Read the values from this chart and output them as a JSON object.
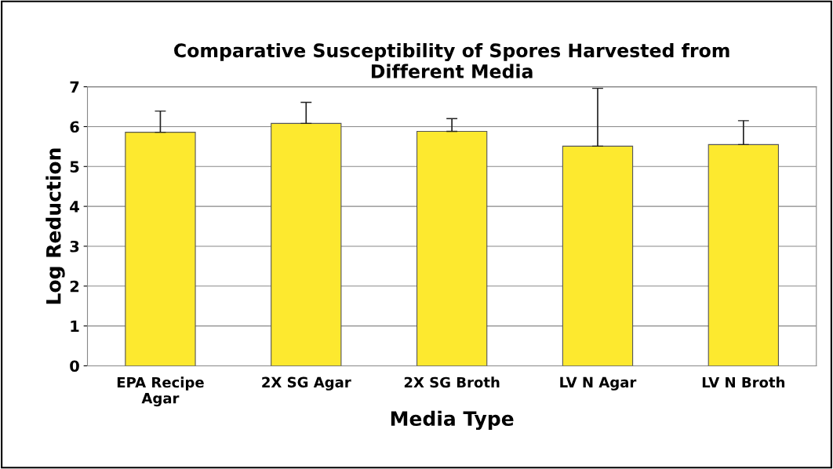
{
  "chart_data": {
    "type": "bar",
    "title": "Comparative Susceptibility of Spores Harvested from\nDifferent Media",
    "xlabel": "Media Type",
    "ylabel": "Log Reduction",
    "categories": [
      "EPA Recipe\nAgar",
      "2X SG Agar",
      "2X SG Broth",
      "LV N Agar",
      "LV N Broth"
    ],
    "values": [
      5.86,
      6.08,
      5.88,
      5.51,
      5.55
    ],
    "errors": [
      [
        5.86,
        6.39
      ],
      [
        6.08,
        6.61
      ],
      [
        5.88,
        6.2
      ],
      [
        5.51,
        6.96
      ],
      [
        5.55,
        6.15
      ]
    ],
    "color": "#fde92f",
    "ylim": [
      0,
      7
    ],
    "yticks": [
      0,
      1,
      2,
      3,
      4,
      5,
      6,
      7
    ],
    "grid": "y",
    "legend": false
  }
}
